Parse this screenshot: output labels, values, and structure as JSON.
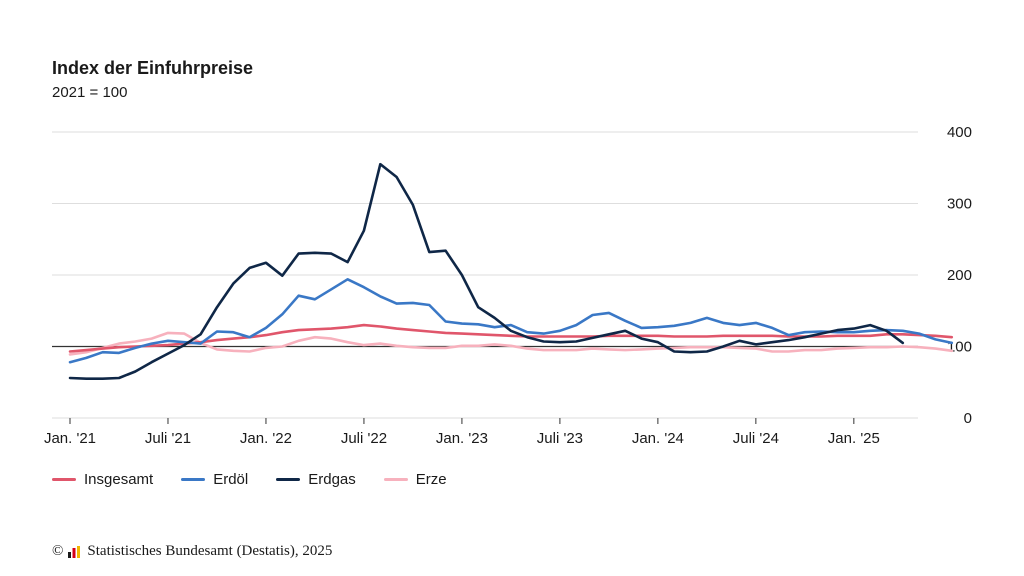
{
  "chart_data": {
    "type": "line",
    "title": "Index der Einfuhrpreise",
    "subtitle": "2021 = 100",
    "x_start": "2021-01",
    "x_tick_labels": [
      "Jan. '21",
      "Juli '21",
      "Jan. '22",
      "Juli '22",
      "Jan. '23",
      "Juli '23",
      "Jan. '24",
      "Juli '24",
      "Jan. '25"
    ],
    "y_ticks": [
      0,
      100,
      200,
      300,
      400
    ],
    "ylim": [
      0,
      400
    ],
    "reference_line": 100,
    "grid": true,
    "legend": "bottom",
    "series": [
      {
        "name": "Insgesamt",
        "color": "#e0566b",
        "values": [
          93,
          95,
          97,
          99,
          100,
          101,
          102,
          104,
          106,
          109,
          111,
          113,
          116,
          120,
          123,
          124,
          125,
          127,
          130,
          128,
          125,
          123,
          121,
          119,
          118,
          117,
          116,
          115,
          114,
          114,
          114,
          114,
          114,
          115,
          115,
          115,
          115,
          114,
          114,
          114,
          115,
          115,
          115,
          115,
          114,
          114,
          114,
          115,
          115,
          115,
          117,
          117,
          116,
          115,
          113
        ]
      },
      {
        "name": "Erdöl",
        "color": "#3a78c6",
        "values": [
          78,
          84,
          92,
          91,
          98,
          104,
          108,
          106,
          104,
          121,
          120,
          113,
          126,
          145,
          171,
          166,
          180,
          194,
          183,
          170,
          160,
          161,
          158,
          135,
          132,
          131,
          127,
          130,
          120,
          118,
          122,
          130,
          144,
          147,
          136,
          126,
          127,
          129,
          133,
          140,
          133,
          130,
          133,
          126,
          116,
          120,
          121,
          120,
          120,
          122,
          123,
          122,
          118,
          110,
          105
        ]
      },
      {
        "name": "Erdgas",
        "color": "#0f2747",
        "values": [
          56,
          55,
          55,
          56,
          65,
          78,
          90,
          102,
          117,
          155,
          188,
          210,
          217,
          199,
          230,
          231,
          230,
          218,
          262,
          355,
          337,
          298,
          232,
          234,
          200,
          155,
          140,
          122,
          113,
          107,
          106,
          107,
          112,
          117,
          122,
          111,
          106,
          93,
          92,
          93,
          100,
          108,
          103,
          106,
          109,
          113,
          118,
          123,
          125,
          130,
          122,
          105
        ]
      },
      {
        "name": "Erze",
        "color": "#f7b1bd",
        "values": [
          89,
          92,
          98,
          104,
          107,
          111,
          119,
          118,
          105,
          96,
          94,
          93,
          98,
          100,
          108,
          113,
          111,
          106,
          102,
          104,
          101,
          99,
          98,
          98,
          101,
          101,
          103,
          101,
          97,
          95,
          95,
          95,
          97,
          96,
          95,
          96,
          97,
          98,
          99,
          99,
          99,
          98,
          97,
          93,
          93,
          95,
          95,
          97,
          98,
          99,
          99,
          100,
          99,
          97,
          94
        ]
      }
    ]
  },
  "source": {
    "text": "Statistisches Bundesamt (Destatis), 2025",
    "copyright": "©"
  }
}
